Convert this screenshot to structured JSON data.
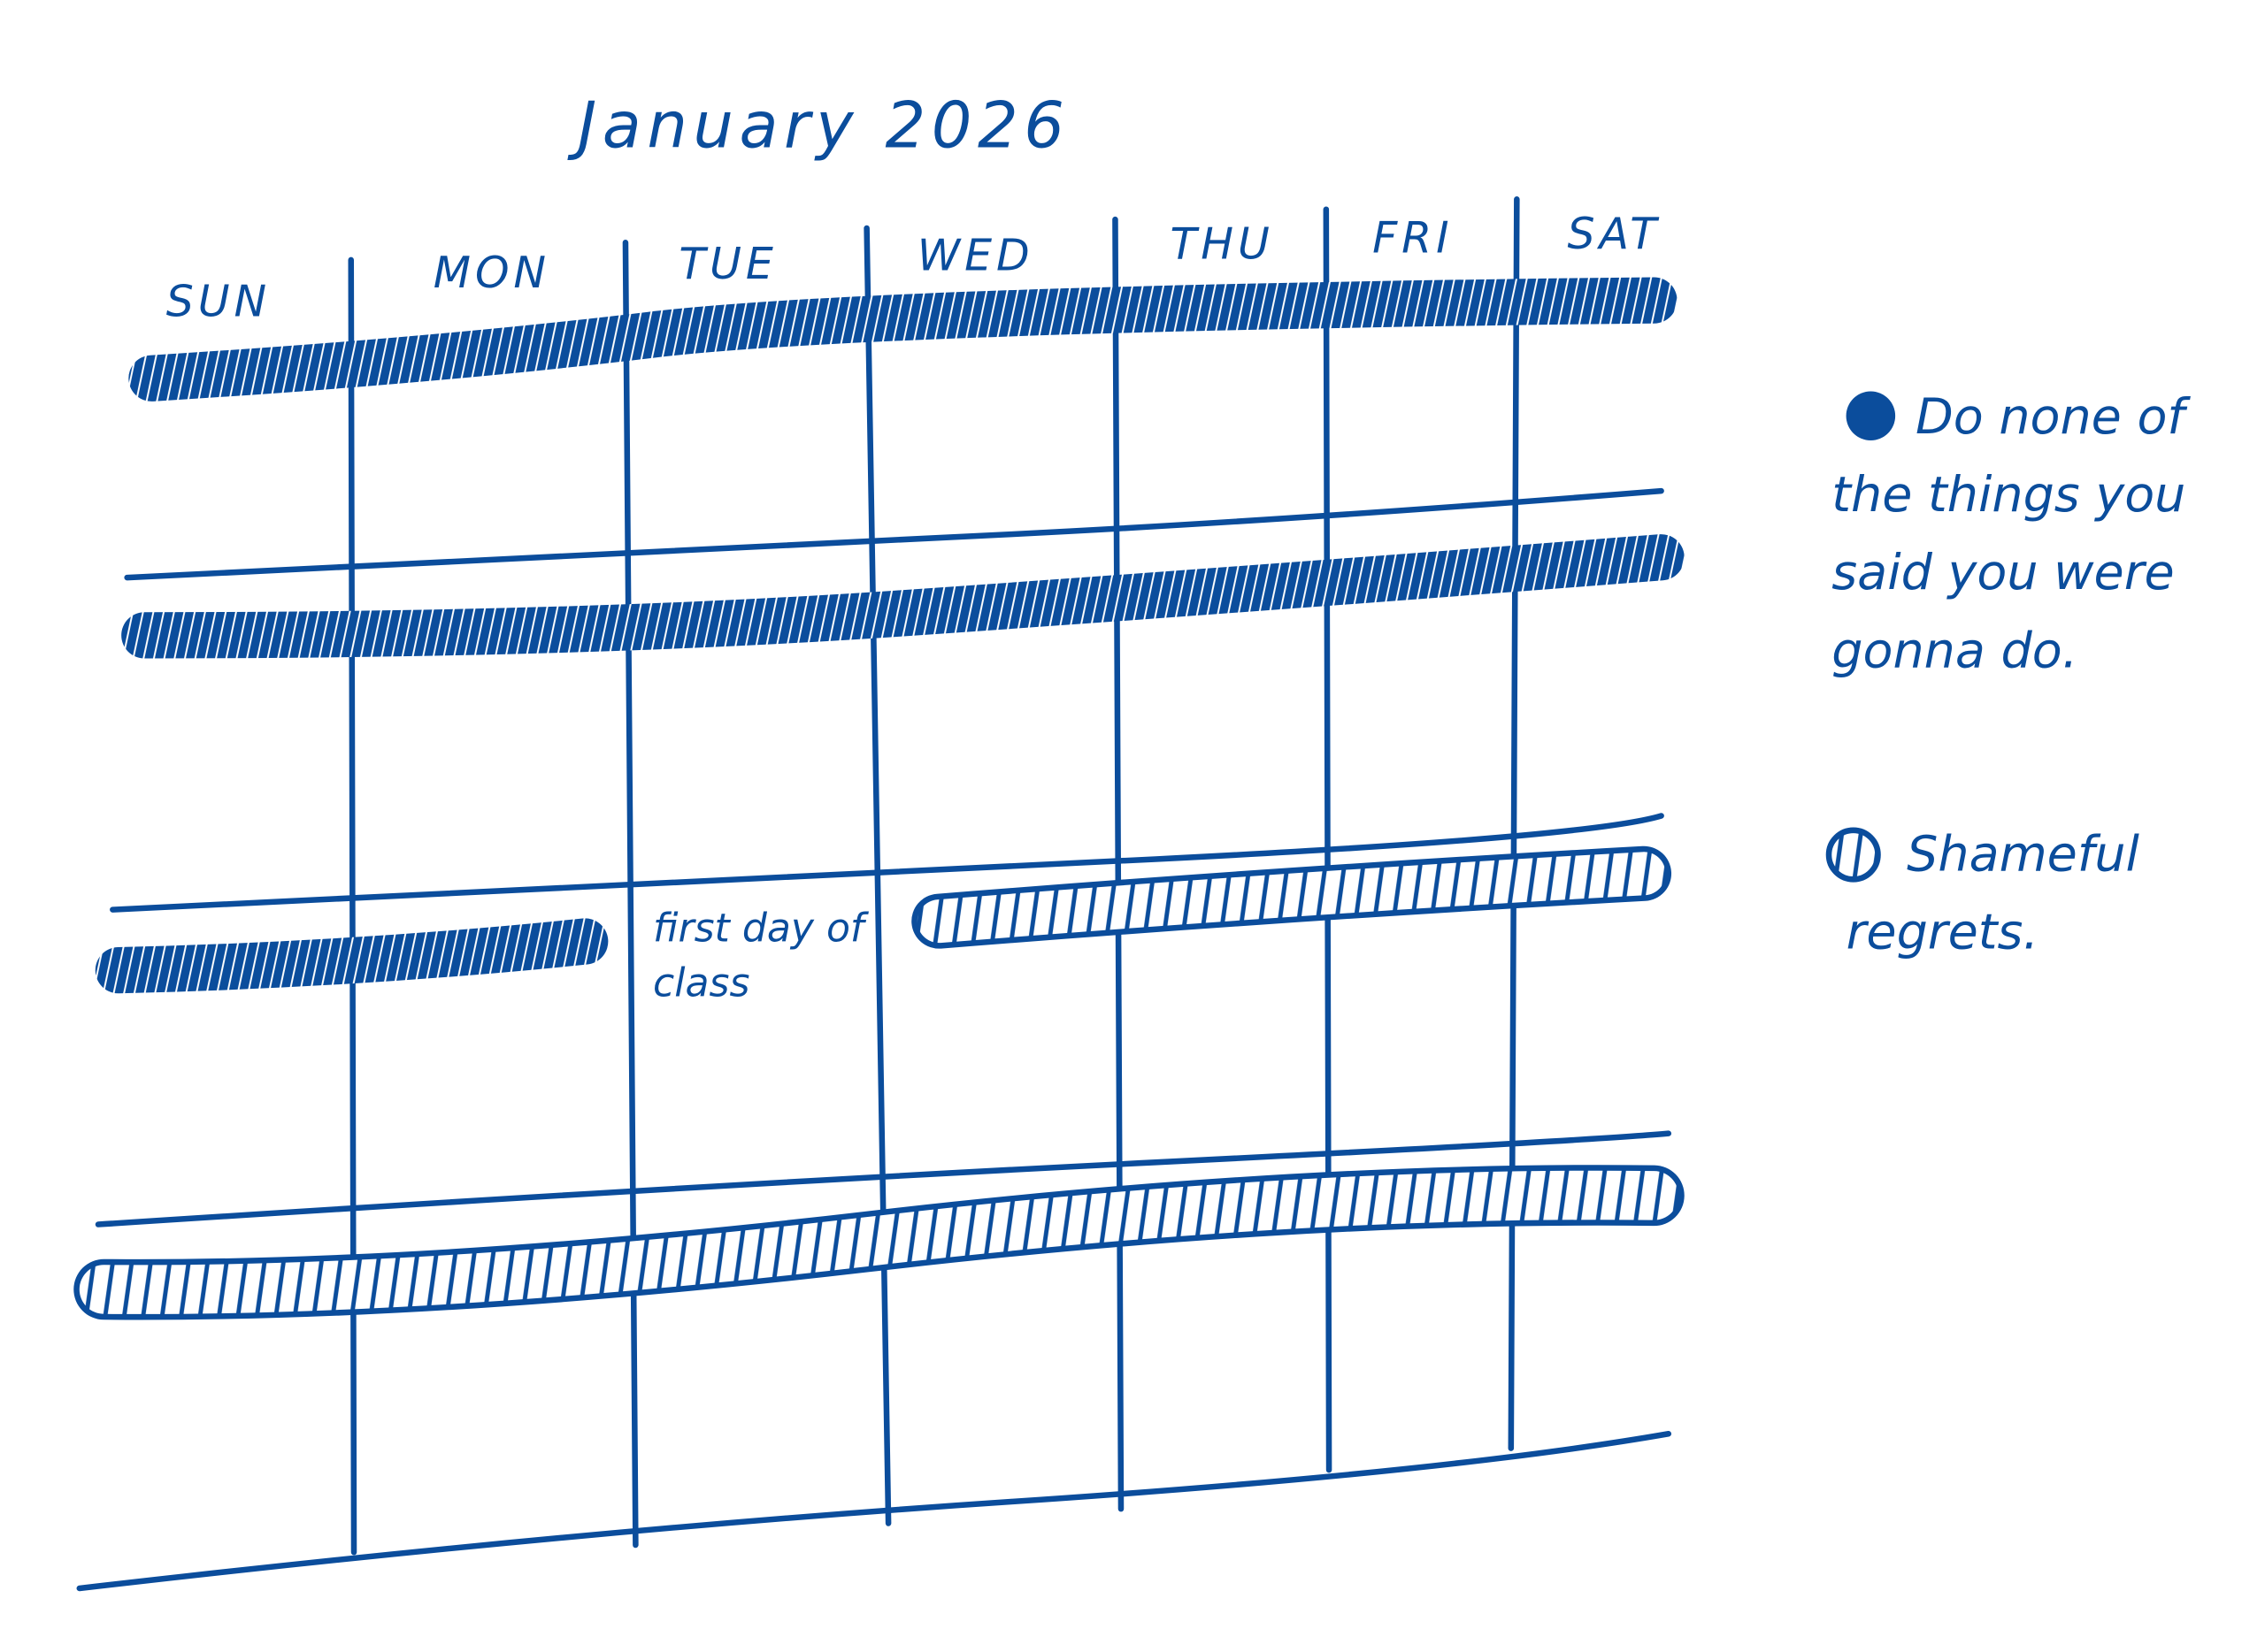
{
  "header": {
    "title": "January 2026"
  },
  "days": [
    "SUN",
    "MON",
    "TUE",
    "WED",
    "THU",
    "FRI",
    "SAT"
  ],
  "notes": [
    "first day of class"
  ],
  "legend": [
    "Do none of the things you said you were gonna do.",
    "Shameful regrets."
  ]
}
